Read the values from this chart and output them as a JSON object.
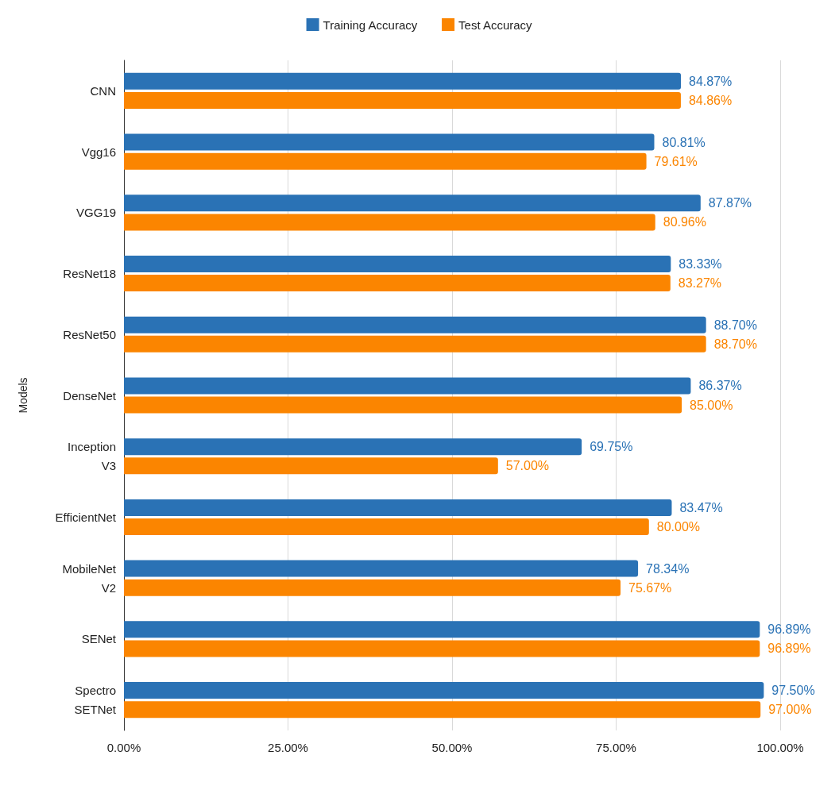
{
  "chart_data": {
    "type": "bar",
    "orientation": "horizontal",
    "ylabel": "Models",
    "categories": [
      "CNN",
      "Vgg16",
      "VGG19",
      "ResNet18",
      "ResNet50",
      "DenseNet",
      "Inception\nV3",
      "EfficientNet",
      "MobileNet\nV2",
      "SENet",
      "Spectro\nSETNet"
    ],
    "series": [
      {
        "name": "Training Accuracy",
        "color": "#2a72b5",
        "values": [
          84.87,
          80.81,
          87.87,
          83.33,
          88.7,
          86.37,
          69.75,
          83.47,
          78.34,
          96.89,
          97.5
        ],
        "value_labels": [
          "84.87%",
          "80.81%",
          "87.87%",
          "83.33%",
          "88.70%",
          "86.37%",
          "69.75%",
          "83.47%",
          "78.34%",
          "96.89%",
          "97.50%"
        ]
      },
      {
        "name": "Test Accuracy",
        "color": "#fb8500",
        "values": [
          84.86,
          79.61,
          80.96,
          83.27,
          88.7,
          85.0,
          57.0,
          80.0,
          75.67,
          96.89,
          97.0
        ],
        "value_labels": [
          "84.86%",
          "79.61%",
          "80.96%",
          "83.27%",
          "88.70%",
          "85.00%",
          "57.00%",
          "80.00%",
          "75.67%",
          "96.89%",
          "97.00%"
        ]
      }
    ],
    "xlim": [
      0,
      100
    ],
    "xticks": [
      {
        "value": 0,
        "label": "0.00%"
      },
      {
        "value": 25,
        "label": "25.00%"
      },
      {
        "value": 50,
        "label": "50.00%"
      },
      {
        "value": 75,
        "label": "75.00%"
      },
      {
        "value": 100,
        "label": "100.00%"
      }
    ],
    "grid": "x",
    "legend": "top"
  }
}
